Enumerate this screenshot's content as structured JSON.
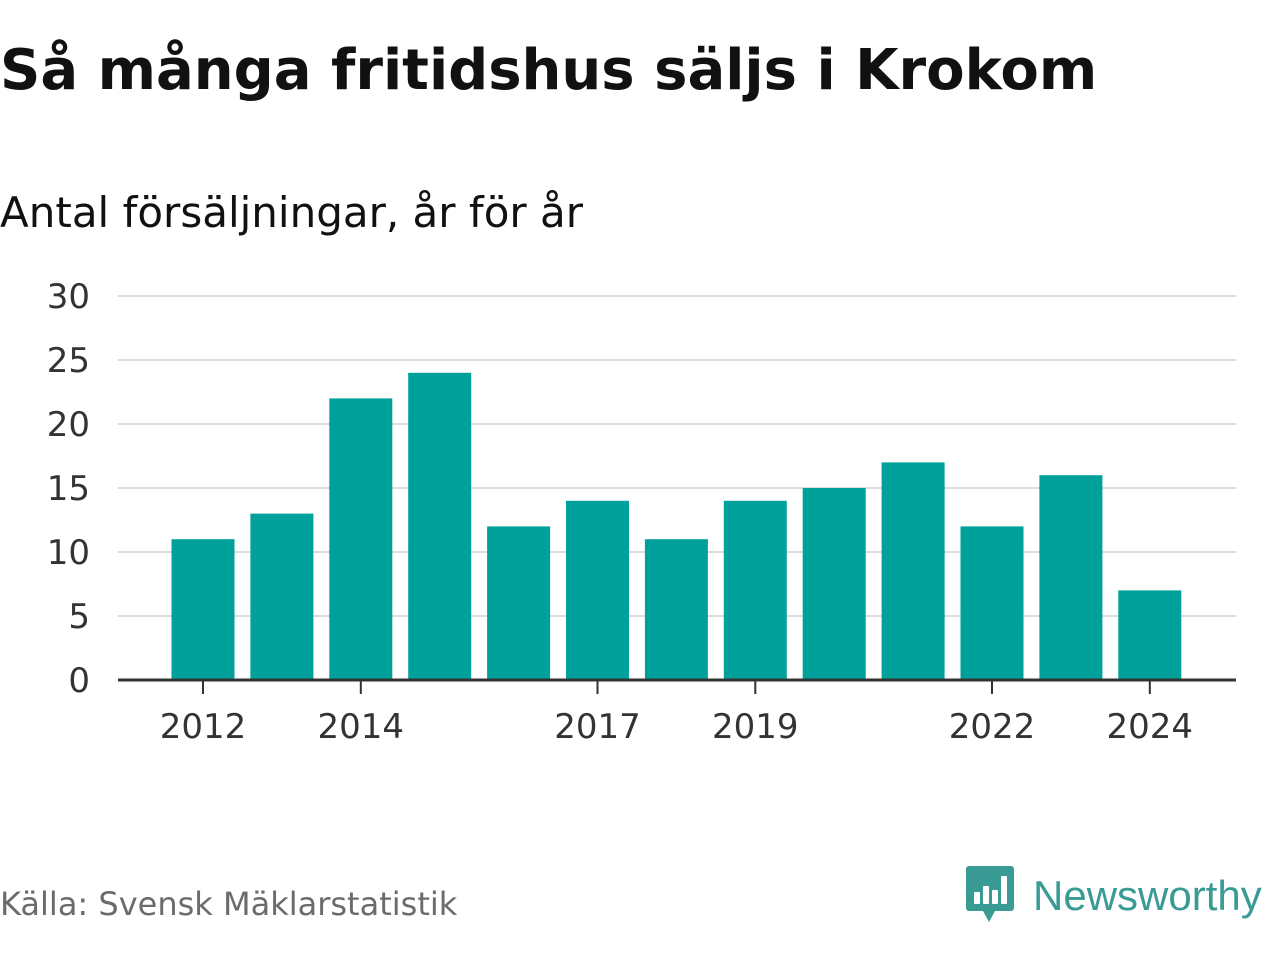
{
  "title": "Så många fritidshus säljs i Krokom",
  "subtitle": "Antal försäljningar, år för år",
  "source": "Källa: Svensk Mäklarstatistik",
  "brand": {
    "name": "Newsworthy",
    "color": "#3a9b94",
    "icon": "chat-bubble-bar-chart-icon"
  },
  "chart_data": {
    "type": "bar",
    "categories": [
      "2012",
      "2013",
      "2014",
      "2015",
      "2016",
      "2017",
      "2018",
      "2019",
      "2020",
      "2021",
      "2022",
      "2023",
      "2024"
    ],
    "values": [
      11,
      13,
      22,
      24,
      12,
      14,
      11,
      14,
      15,
      17,
      12,
      16,
      7
    ],
    "x_tick_labels": [
      "2012",
      "2014",
      "2017",
      "2019",
      "2022",
      "2024"
    ],
    "y_ticks": [
      0,
      5,
      10,
      15,
      20,
      25,
      30
    ],
    "ylim": [
      0,
      30
    ],
    "grid": true,
    "bar_color": "#00a19a",
    "grid_color": "#dddddd",
    "axis_color": "#333333"
  }
}
